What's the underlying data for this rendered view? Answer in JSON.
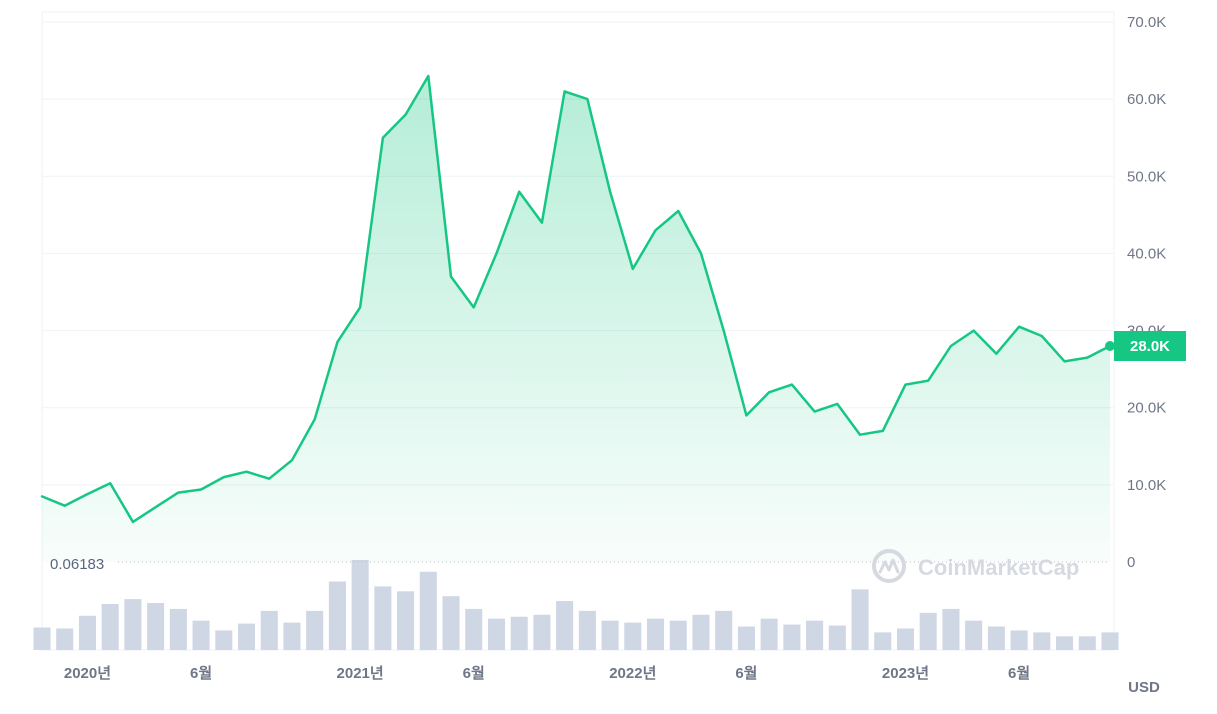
{
  "chart_data": {
    "type": "line",
    "price_unit": "USD",
    "ylim": [
      0,
      70000
    ],
    "yticks": [
      {
        "value": 0,
        "label": "0"
      },
      {
        "value": 10000,
        "label": "10.0K"
      },
      {
        "value": 20000,
        "label": "20.0K"
      },
      {
        "value": 30000,
        "label": "30.0K"
      },
      {
        "value": 40000,
        "label": "40.0K"
      },
      {
        "value": 50000,
        "label": "50.0K"
      },
      {
        "value": 60000,
        "label": "60.0K"
      },
      {
        "value": 70000,
        "label": "70.0K"
      }
    ],
    "xticks": [
      {
        "date": "2020-01",
        "label": "2020년"
      },
      {
        "date": "2020-06",
        "label": "6월"
      },
      {
        "date": "2021-01",
        "label": "2021년"
      },
      {
        "date": "2021-06",
        "label": "6월"
      },
      {
        "date": "2022-01",
        "label": "2022년"
      },
      {
        "date": "2022-06",
        "label": "6월"
      },
      {
        "date": "2023-01",
        "label": "2023년"
      },
      {
        "date": "2023-06",
        "label": "6월"
      }
    ],
    "current_price_label": "28.0K",
    "min_value_label": "0.06183",
    "line_color": "#16c784",
    "volume_color": "#cfd6e4",
    "watermark": "CoinMarketCap",
    "price_series": {
      "name": "",
      "x": [
        "2019-11",
        "2019-12",
        "2020-01",
        "2020-02",
        "2020-03",
        "2020-04",
        "2020-05",
        "2020-06",
        "2020-07",
        "2020-08",
        "2020-09",
        "2020-10",
        "2020-11",
        "2020-12",
        "2021-01",
        "2021-02",
        "2021-03",
        "2021-04",
        "2021-05",
        "2021-06",
        "2021-07",
        "2021-08",
        "2021-09",
        "2021-10",
        "2021-11",
        "2021-12",
        "2022-01",
        "2022-02",
        "2022-03",
        "2022-04",
        "2022-05",
        "2022-06",
        "2022-07",
        "2022-08",
        "2022-09",
        "2022-10",
        "2022-11",
        "2022-12",
        "2023-01",
        "2023-02",
        "2023-03",
        "2023-04",
        "2023-05",
        "2023-06",
        "2023-07",
        "2023-08",
        "2023-09",
        "2023-10"
      ],
      "values": [
        8500,
        7300,
        8800,
        10200,
        5200,
        7100,
        9000,
        9400,
        11000,
        11700,
        10800,
        13200,
        18500,
        28500,
        33000,
        55000,
        58000,
        63000,
        37000,
        33000,
        40000,
        48000,
        44000,
        61000,
        60000,
        48000,
        38000,
        43000,
        45500,
        40000,
        30000,
        19000,
        22000,
        23000,
        19500,
        20500,
        16500,
        17000,
        23000,
        23500,
        28000,
        30000,
        27000,
        30500,
        29300,
        26000,
        26500,
        28000
      ]
    },
    "volume_series": {
      "name": "",
      "x": [
        "2019-11",
        "2019-12",
        "2020-01",
        "2020-02",
        "2020-03",
        "2020-04",
        "2020-05",
        "2020-06",
        "2020-07",
        "2020-08",
        "2020-09",
        "2020-10",
        "2020-11",
        "2020-12",
        "2021-01",
        "2021-02",
        "2021-03",
        "2021-04",
        "2021-05",
        "2021-06",
        "2021-07",
        "2021-08",
        "2021-09",
        "2021-10",
        "2021-11",
        "2021-12",
        "2022-01",
        "2022-02",
        "2022-03",
        "2022-04",
        "2022-05",
        "2022-06",
        "2022-07",
        "2022-08",
        "2022-09",
        "2022-10",
        "2022-11",
        "2022-12",
        "2023-01",
        "2023-02",
        "2023-03",
        "2023-04",
        "2023-05",
        "2023-06",
        "2023-07",
        "2023-08",
        "2023-09",
        "2023-10"
      ],
      "values": [
        23,
        22,
        35,
        47,
        52,
        48,
        42,
        30,
        20,
        27,
        40,
        28,
        40,
        70,
        92,
        65,
        60,
        80,
        55,
        42,
        32,
        34,
        36,
        50,
        40,
        30,
        28,
        32,
        30,
        36,
        40,
        24,
        32,
        26,
        30,
        25,
        62,
        18,
        22,
        38,
        42,
        30,
        24,
        20,
        18,
        14,
        14,
        18
      ]
    }
  }
}
